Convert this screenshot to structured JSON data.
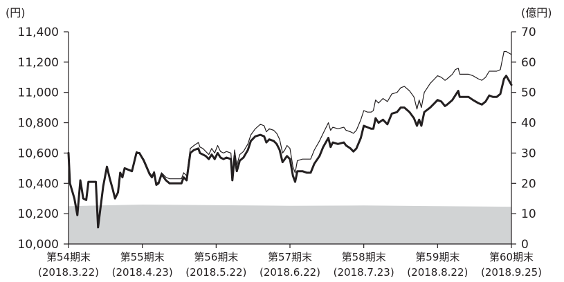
{
  "chart_data": {
    "type": "line",
    "left_axis": {
      "unit": "(円)",
      "ylim": [
        10000,
        11400
      ],
      "ticks": [
        "10,000",
        "10,200",
        "10,400",
        "10,600",
        "10,800",
        "11,000",
        "11,200",
        "11,400"
      ],
      "tick_values": [
        10000,
        10200,
        10400,
        10600,
        10800,
        11000,
        11200,
        11400
      ]
    },
    "right_axis": {
      "unit": "(億円)",
      "ylim": [
        0,
        70
      ],
      "ticks": [
        "0",
        "10",
        "20",
        "30",
        "40",
        "50",
        "60",
        "70"
      ],
      "tick_values": [
        0,
        10,
        20,
        30,
        40,
        50,
        60,
        70
      ]
    },
    "categories": [
      {
        "period": "第54期末",
        "date": "(2018.3.22)"
      },
      {
        "period": "第55期末",
        "date": "(2018.4.23)"
      },
      {
        "period": "第56期末",
        "date": "(2018.5.22)"
      },
      {
        "period": "第57期末",
        "date": "(2018.6.22)"
      },
      {
        "period": "第58期末",
        "date": "(2018.7.23)"
      },
      {
        "period": "第59期末",
        "date": "(2018.8.22)"
      },
      {
        "period": "第60期末",
        "date": "(2018.9.25)"
      }
    ],
    "x_range": [
      0,
      6
    ],
    "series": [
      {
        "axis": "left",
        "color": "#231f20",
        "style": "thick-line",
        "points": [
          [
            0.0,
            10600
          ],
          [
            0.02,
            10400
          ],
          [
            0.08,
            10300
          ],
          [
            0.12,
            10190
          ],
          [
            0.16,
            10420
          ],
          [
            0.2,
            10300
          ],
          [
            0.24,
            10290
          ],
          [
            0.27,
            10410
          ],
          [
            0.37,
            10410
          ],
          [
            0.4,
            10110
          ],
          [
            0.47,
            10380
          ],
          [
            0.52,
            10510
          ],
          [
            0.56,
            10430
          ],
          [
            0.6,
            10360
          ],
          [
            0.63,
            10300
          ],
          [
            0.67,
            10340
          ],
          [
            0.7,
            10470
          ],
          [
            0.73,
            10440
          ],
          [
            0.76,
            10500
          ],
          [
            0.86,
            10480
          ],
          [
            0.92,
            10600
          ],
          [
            0.96,
            10600
          ],
          [
            1.02,
            10550
          ],
          [
            1.1,
            10460
          ],
          [
            1.13,
            10440
          ],
          [
            1.16,
            10470
          ],
          [
            1.19,
            10390
          ],
          [
            1.22,
            10400
          ],
          [
            1.26,
            10460
          ],
          [
            1.32,
            10420
          ],
          [
            1.37,
            10400
          ],
          [
            1.48,
            10400
          ],
          [
            1.53,
            10400
          ],
          [
            1.56,
            10440
          ],
          [
            1.6,
            10420
          ],
          [
            1.65,
            10600
          ],
          [
            1.7,
            10620
          ],
          [
            1.76,
            10630
          ],
          [
            1.78,
            10600
          ],
          [
            1.82,
            10590
          ],
          [
            1.86,
            10580
          ],
          [
            1.9,
            10560
          ],
          [
            1.94,
            10590
          ],
          [
            1.98,
            10560
          ],
          [
            2.02,
            10600
          ],
          [
            2.06,
            10570
          ],
          [
            2.1,
            10560
          ],
          [
            2.14,
            10570
          ],
          [
            2.2,
            10560
          ],
          [
            2.22,
            10420
          ],
          [
            2.25,
            10580
          ],
          [
            2.28,
            10480
          ],
          [
            2.32,
            10550
          ],
          [
            2.37,
            10570
          ],
          [
            2.43,
            10620
          ],
          [
            2.47,
            10680
          ],
          [
            2.53,
            10710
          ],
          [
            2.6,
            10720
          ],
          [
            2.65,
            10710
          ],
          [
            2.68,
            10670
          ],
          [
            2.72,
            10690
          ],
          [
            2.78,
            10680
          ],
          [
            2.82,
            10660
          ],
          [
            2.86,
            10620
          ],
          [
            2.9,
            10540
          ],
          [
            2.93,
            10560
          ],
          [
            2.96,
            10580
          ],
          [
            3.0,
            10560
          ],
          [
            3.04,
            10450
          ],
          [
            3.07,
            10410
          ],
          [
            3.1,
            10480
          ],
          [
            3.17,
            10480
          ],
          [
            3.23,
            10470
          ],
          [
            3.28,
            10470
          ],
          [
            3.33,
            10530
          ],
          [
            3.4,
            10580
          ],
          [
            3.45,
            10640
          ],
          [
            3.52,
            10700
          ],
          [
            3.55,
            10640
          ],
          [
            3.58,
            10670
          ],
          [
            3.65,
            10660
          ],
          [
            3.73,
            10670
          ],
          [
            3.76,
            10650
          ],
          [
            3.82,
            10630
          ],
          [
            3.86,
            10610
          ],
          [
            3.9,
            10630
          ],
          [
            3.96,
            10700
          ],
          [
            4.0,
            10780
          ],
          [
            4.05,
            10770
          ],
          [
            4.1,
            10760
          ],
          [
            4.13,
            10760
          ],
          [
            4.16,
            10830
          ],
          [
            4.2,
            10800
          ],
          [
            4.26,
            10820
          ],
          [
            4.32,
            10790
          ],
          [
            4.38,
            10860
          ],
          [
            4.45,
            10870
          ],
          [
            4.5,
            10900
          ],
          [
            4.55,
            10900
          ],
          [
            4.62,
            10870
          ],
          [
            4.68,
            10830
          ],
          [
            4.72,
            10780
          ],
          [
            4.75,
            10820
          ],
          [
            4.78,
            10780
          ],
          [
            4.82,
            10870
          ],
          [
            4.9,
            10900
          ],
          [
            4.96,
            10930
          ],
          [
            5.0,
            10950
          ],
          [
            5.05,
            10940
          ],
          [
            5.1,
            10910
          ],
          [
            5.13,
            10920
          ],
          [
            5.2,
            10950
          ],
          [
            5.24,
            10980
          ],
          [
            5.28,
            11010
          ],
          [
            5.3,
            10970
          ],
          [
            5.35,
            10970
          ],
          [
            5.42,
            10970
          ],
          [
            5.48,
            10950
          ],
          [
            5.55,
            10930
          ],
          [
            5.6,
            10920
          ],
          [
            5.65,
            10940
          ],
          [
            5.7,
            10980
          ],
          [
            5.75,
            10970
          ],
          [
            5.8,
            10970
          ],
          [
            5.85,
            10990
          ],
          [
            5.9,
            11090
          ],
          [
            5.93,
            11110
          ],
          [
            6.0,
            11050
          ]
        ]
      },
      {
        "axis": "left",
        "color": "#231f20",
        "style": "thin-line",
        "points": [
          [
            0.0,
            10600
          ],
          [
            0.02,
            10400
          ],
          [
            0.08,
            10300
          ],
          [
            0.12,
            10190
          ],
          [
            0.16,
            10420
          ],
          [
            0.2,
            10300
          ],
          [
            0.24,
            10290
          ],
          [
            0.27,
            10410
          ],
          [
            0.37,
            10410
          ],
          [
            0.4,
            10110
          ],
          [
            0.47,
            10380
          ],
          [
            0.52,
            10510
          ],
          [
            0.56,
            10430
          ],
          [
            0.6,
            10360
          ],
          [
            0.63,
            10300
          ],
          [
            0.67,
            10340
          ],
          [
            0.7,
            10470
          ],
          [
            0.73,
            10440
          ],
          [
            0.76,
            10500
          ],
          [
            0.86,
            10480
          ],
          [
            0.92,
            10610
          ],
          [
            0.96,
            10600
          ],
          [
            1.02,
            10560
          ],
          [
            1.1,
            10470
          ],
          [
            1.13,
            10450
          ],
          [
            1.16,
            10480
          ],
          [
            1.19,
            10400
          ],
          [
            1.22,
            10410
          ],
          [
            1.26,
            10470
          ],
          [
            1.32,
            10440
          ],
          [
            1.37,
            10430
          ],
          [
            1.48,
            10430
          ],
          [
            1.53,
            10430
          ],
          [
            1.56,
            10470
          ],
          [
            1.6,
            10450
          ],
          [
            1.65,
            10630
          ],
          [
            1.7,
            10650
          ],
          [
            1.76,
            10670
          ],
          [
            1.78,
            10640
          ],
          [
            1.82,
            10630
          ],
          [
            1.86,
            10610
          ],
          [
            1.9,
            10590
          ],
          [
            1.94,
            10630
          ],
          [
            1.98,
            10600
          ],
          [
            2.02,
            10650
          ],
          [
            2.06,
            10610
          ],
          [
            2.1,
            10600
          ],
          [
            2.14,
            10610
          ],
          [
            2.2,
            10600
          ],
          [
            2.22,
            10450
          ],
          [
            2.25,
            10620
          ],
          [
            2.28,
            10520
          ],
          [
            2.32,
            10590
          ],
          [
            2.37,
            10610
          ],
          [
            2.43,
            10660
          ],
          [
            2.47,
            10720
          ],
          [
            2.53,
            10760
          ],
          [
            2.6,
            10790
          ],
          [
            2.65,
            10780
          ],
          [
            2.68,
            10740
          ],
          [
            2.72,
            10760
          ],
          [
            2.78,
            10750
          ],
          [
            2.82,
            10730
          ],
          [
            2.86,
            10690
          ],
          [
            2.9,
            10600
          ],
          [
            2.93,
            10620
          ],
          [
            2.96,
            10650
          ],
          [
            3.0,
            10630
          ],
          [
            3.04,
            10510
          ],
          [
            3.07,
            10470
          ],
          [
            3.1,
            10550
          ],
          [
            3.17,
            10560
          ],
          [
            3.23,
            10560
          ],
          [
            3.28,
            10560
          ],
          [
            3.33,
            10620
          ],
          [
            3.4,
            10680
          ],
          [
            3.45,
            10730
          ],
          [
            3.52,
            10800
          ],
          [
            3.55,
            10750
          ],
          [
            3.58,
            10770
          ],
          [
            3.65,
            10760
          ],
          [
            3.73,
            10770
          ],
          [
            3.76,
            10750
          ],
          [
            3.82,
            10740
          ],
          [
            3.86,
            10730
          ],
          [
            3.9,
            10750
          ],
          [
            3.96,
            10820
          ],
          [
            4.0,
            10880
          ],
          [
            4.05,
            10870
          ],
          [
            4.1,
            10870
          ],
          [
            4.13,
            10880
          ],
          [
            4.16,
            10950
          ],
          [
            4.2,
            10930
          ],
          [
            4.26,
            10960
          ],
          [
            4.32,
            10940
          ],
          [
            4.38,
            10990
          ],
          [
            4.45,
            11000
          ],
          [
            4.5,
            11030
          ],
          [
            4.55,
            11040
          ],
          [
            4.62,
            11010
          ],
          [
            4.68,
            10970
          ],
          [
            4.72,
            10890
          ],
          [
            4.75,
            10950
          ],
          [
            4.78,
            10900
          ],
          [
            4.82,
            11000
          ],
          [
            4.9,
            11060
          ],
          [
            4.96,
            11090
          ],
          [
            5.0,
            11110
          ],
          [
            5.05,
            11100
          ],
          [
            5.1,
            11080
          ],
          [
            5.13,
            11090
          ],
          [
            5.2,
            11120
          ],
          [
            5.24,
            11150
          ],
          [
            5.28,
            11160
          ],
          [
            5.3,
            11120
          ],
          [
            5.35,
            11120
          ],
          [
            5.42,
            11120
          ],
          [
            5.48,
            11110
          ],
          [
            5.55,
            11090
          ],
          [
            5.6,
            11080
          ],
          [
            5.65,
            11100
          ],
          [
            5.7,
            11140
          ],
          [
            5.75,
            11140
          ],
          [
            5.8,
            11140
          ],
          [
            5.85,
            11150
          ],
          [
            5.9,
            11270
          ],
          [
            5.93,
            11270
          ],
          [
            6.0,
            11250
          ]
        ]
      },
      {
        "axis": "right",
        "color": "#d1d3d4",
        "style": "area",
        "points": [
          [
            0.0,
            12.5
          ],
          [
            1.0,
            13.0
          ],
          [
            2.0,
            12.8
          ],
          [
            3.0,
            12.6
          ],
          [
            4.0,
            12.7
          ],
          [
            5.0,
            12.5
          ],
          [
            6.0,
            12.3
          ]
        ]
      }
    ]
  }
}
